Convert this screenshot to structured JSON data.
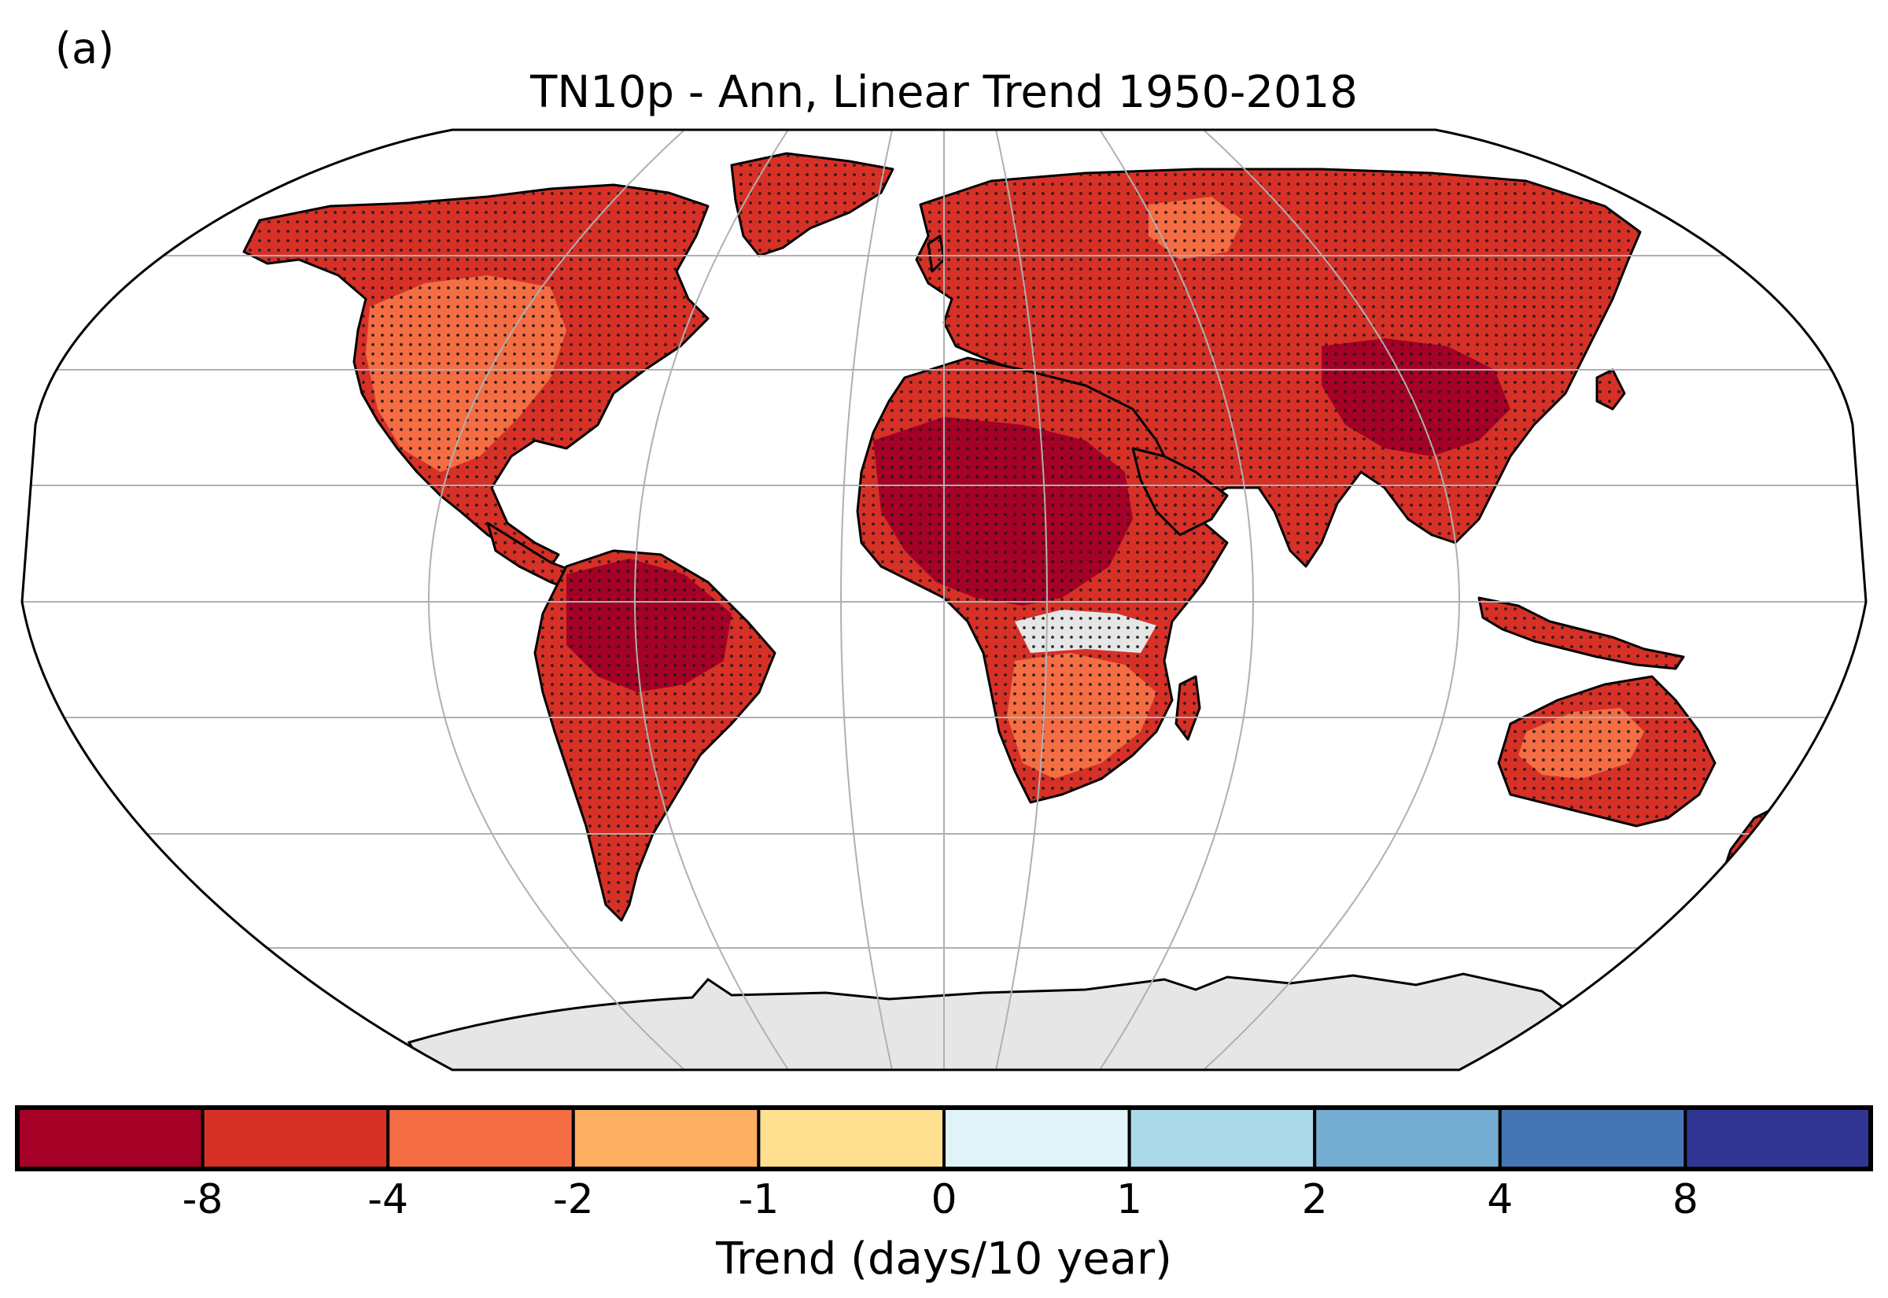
{
  "panel_label": "(a)",
  "title": "TN10p - Ann, Linear Trend 1950-2018",
  "colorbar": {
    "label": "Trend (days/10 year)",
    "tick_labels": [
      "-8",
      "-4",
      "-2",
      "-1",
      "0",
      "1",
      "2",
      "4",
      "8"
    ],
    "bins": [
      {
        "range": "< -8",
        "color": "#a50026"
      },
      {
        "range": "-8 to -4",
        "color": "#d73027"
      },
      {
        "range": "-4 to -2",
        "color": "#f46d43"
      },
      {
        "range": "-2 to -1",
        "color": "#fdae61"
      },
      {
        "range": "-1 to 0",
        "color": "#fee090"
      },
      {
        "range": "0 to 1",
        "color": "#e0f3f8"
      },
      {
        "range": "1 to 2",
        "color": "#abd9e9"
      },
      {
        "range": "2 to 4",
        "color": "#74add1"
      },
      {
        "range": "4 to 8",
        "color": "#4575b4"
      },
      {
        "range": "> 8",
        "color": "#313695"
      }
    ]
  },
  "map": {
    "projection": "Robinson",
    "gridlines": true,
    "missing_data_color": "#e6e6e6",
    "significance_marker": "stippling"
  }
}
